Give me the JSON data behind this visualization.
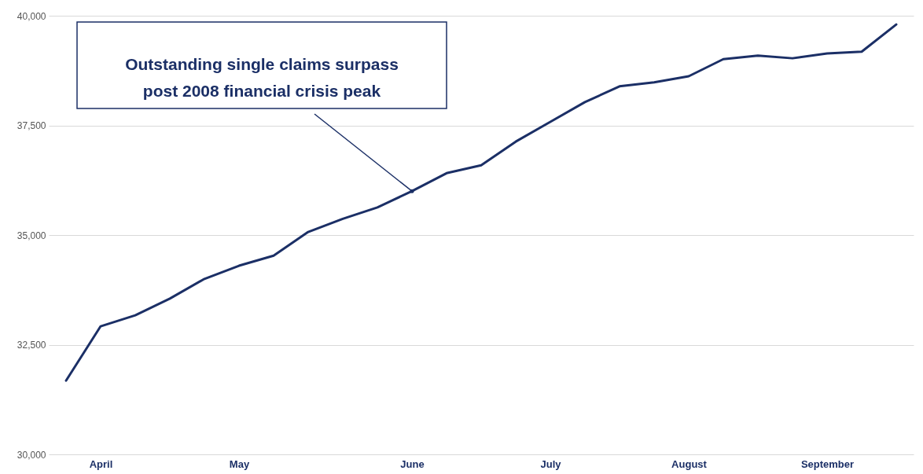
{
  "chart_data": {
    "type": "line",
    "categories": [
      null,
      "April",
      null,
      null,
      null,
      "May",
      null,
      null,
      null,
      null,
      "June",
      null,
      null,
      null,
      "July",
      null,
      null,
      null,
      "August",
      null,
      null,
      null,
      "September",
      null,
      null
    ],
    "series": [
      {
        "color": "#1b2f66",
        "values": [
          31680,
          32920,
          33170,
          33550,
          34000,
          34300,
          34530,
          35070,
          35370,
          35630,
          36000,
          36410,
          36590,
          37130,
          37580,
          38030,
          38390,
          38480,
          38620,
          39010,
          39090,
          39030,
          39140,
          39180,
          39800
        ]
      }
    ],
    "ylim": [
      30000,
      40000
    ],
    "yticks": [
      {
        "value": 30000,
        "label": "30,000"
      },
      {
        "value": 32500,
        "label": "32,500"
      },
      {
        "value": 35000,
        "label": "35,000"
      },
      {
        "value": 37500,
        "label": "37,500"
      },
      {
        "value": 40000,
        "label": "40,000"
      }
    ],
    "grid": "y",
    "marker": "none",
    "line_style": "solid",
    "annotations": [
      {
        "text": "Outstanding single claims surpass\npost 2008 financial crisis peak",
        "x": "June",
        "y": 36000
      }
    ]
  }
}
